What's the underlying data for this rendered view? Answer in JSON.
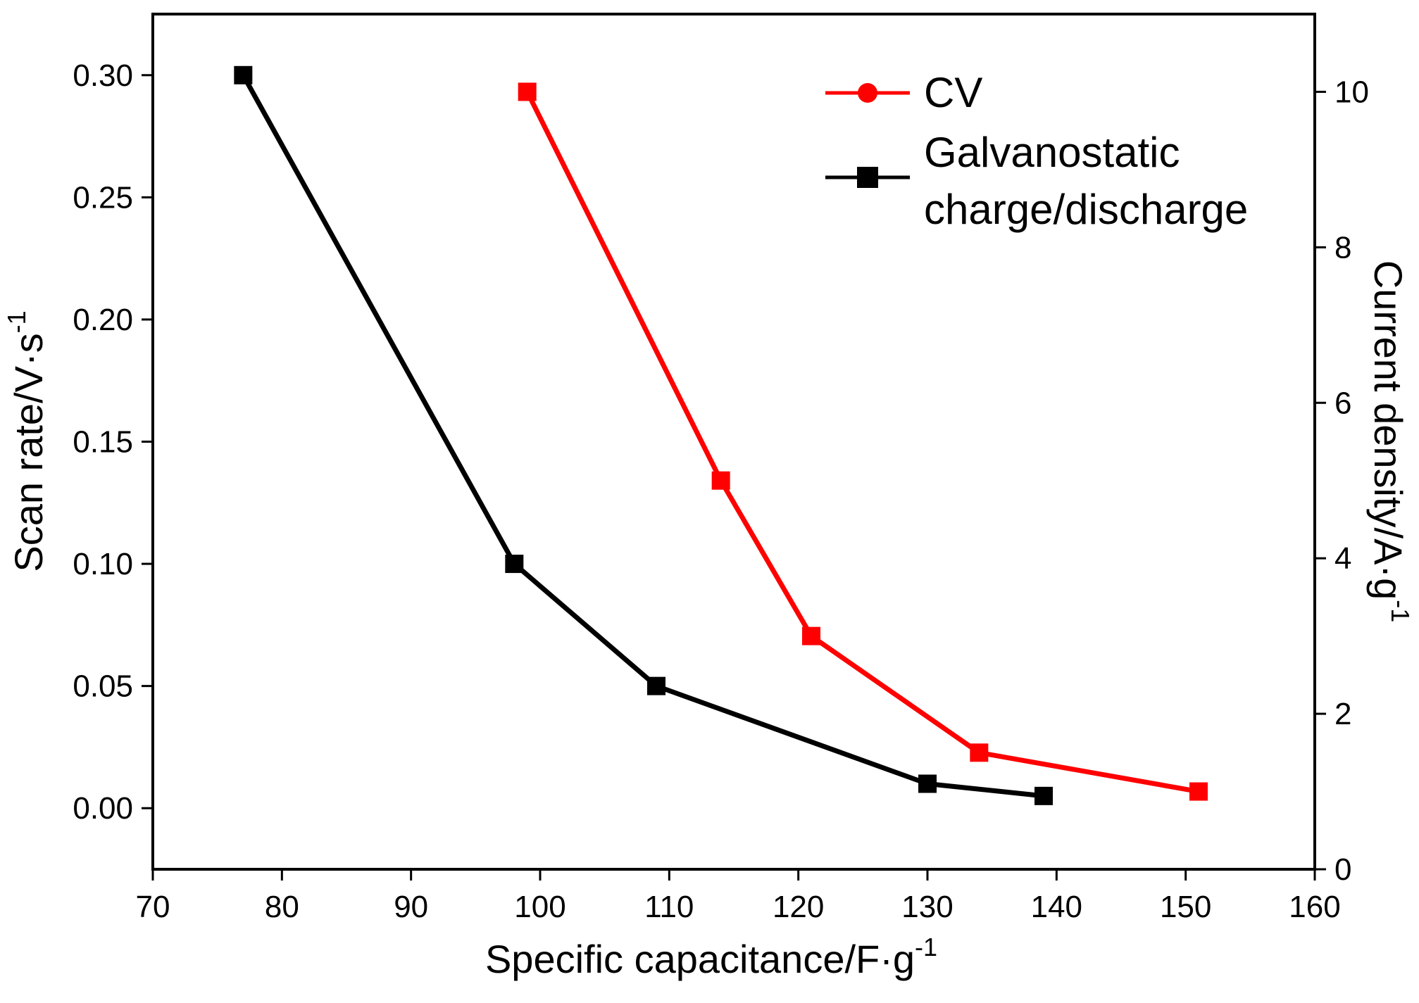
{
  "chart_data": {
    "type": "line",
    "x_axis": {
      "label_main": "Specific capacitance/F·g",
      "label_sup": "-1",
      "range": [
        70,
        160
      ],
      "ticks": [
        "70",
        "80",
        "90",
        "100",
        "110",
        "120",
        "130",
        "140",
        "150",
        "160"
      ]
    },
    "y_axis_left": {
      "label_main": "Scan rate/V·s",
      "label_sup": "-1",
      "range": [
        -0.025,
        0.325
      ],
      "ticks": [
        "0.00",
        "0.05",
        "0.10",
        "0.15",
        "0.20",
        "0.25",
        "0.30"
      ]
    },
    "y_axis_right": {
      "label_main": "Current density/A·g",
      "label_sup": "-1",
      "range": [
        0,
        11
      ],
      "ticks": [
        "0",
        "2",
        "4",
        "6",
        "8",
        "10"
      ]
    },
    "grid": false,
    "legend_position": "top-right",
    "series": [
      {
        "name": "CV",
        "color": "#ff0000",
        "axis": "right",
        "x": [
          99,
          114,
          121,
          134,
          151
        ],
        "y": [
          10,
          5,
          3,
          1.5,
          1
        ]
      },
      {
        "name_lines": [
          "Galvanostatic",
          "charge/discharge"
        ],
        "color": "#000000",
        "axis": "left",
        "x": [
          77,
          98,
          109,
          130,
          139
        ],
        "y": [
          0.3,
          0.1,
          0.05,
          0.01,
          0.005
        ]
      }
    ]
  }
}
